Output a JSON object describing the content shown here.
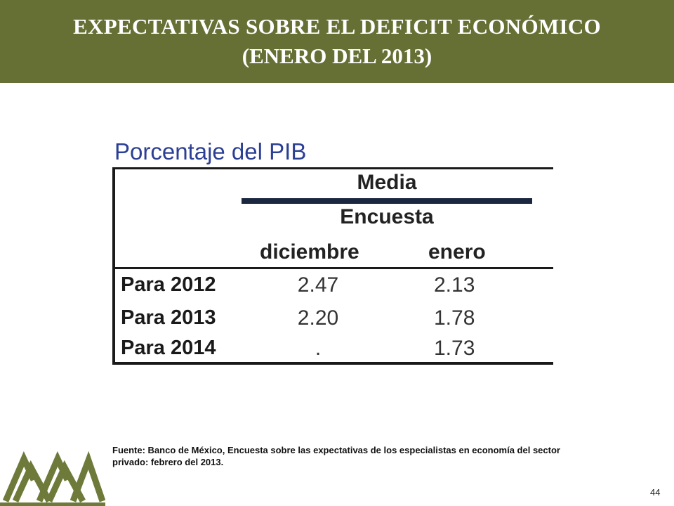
{
  "header": {
    "title_line1": "EXPECTATIVAS SOBRE EL DEFICIT ECONÓMICO",
    "title_line2": "(ENERO DEL 2013)"
  },
  "table": {
    "title": "Porcentaje del PIB",
    "group_header": "Media",
    "sub_header": "Encuesta",
    "columns": [
      "diciembre",
      "enero"
    ],
    "rows": [
      {
        "label": "Para 2012",
        "values": [
          "2.47",
          "2.13"
        ]
      },
      {
        "label": "Para 2013",
        "values": [
          "2.20",
          "1.78"
        ]
      },
      {
        "label": "Para 2014",
        "values": [
          ".",
          "1.73"
        ]
      }
    ]
  },
  "footer": {
    "source": "Fuente: Banco de México, Encuesta sobre las expectativas de los especialistas en economía del sector privado: febrero del 2013.",
    "page_number": "44"
  },
  "colors": {
    "header_bg": "#667035",
    "title_blue": "#2b3f95",
    "logo_green": "#6d7a3a"
  }
}
